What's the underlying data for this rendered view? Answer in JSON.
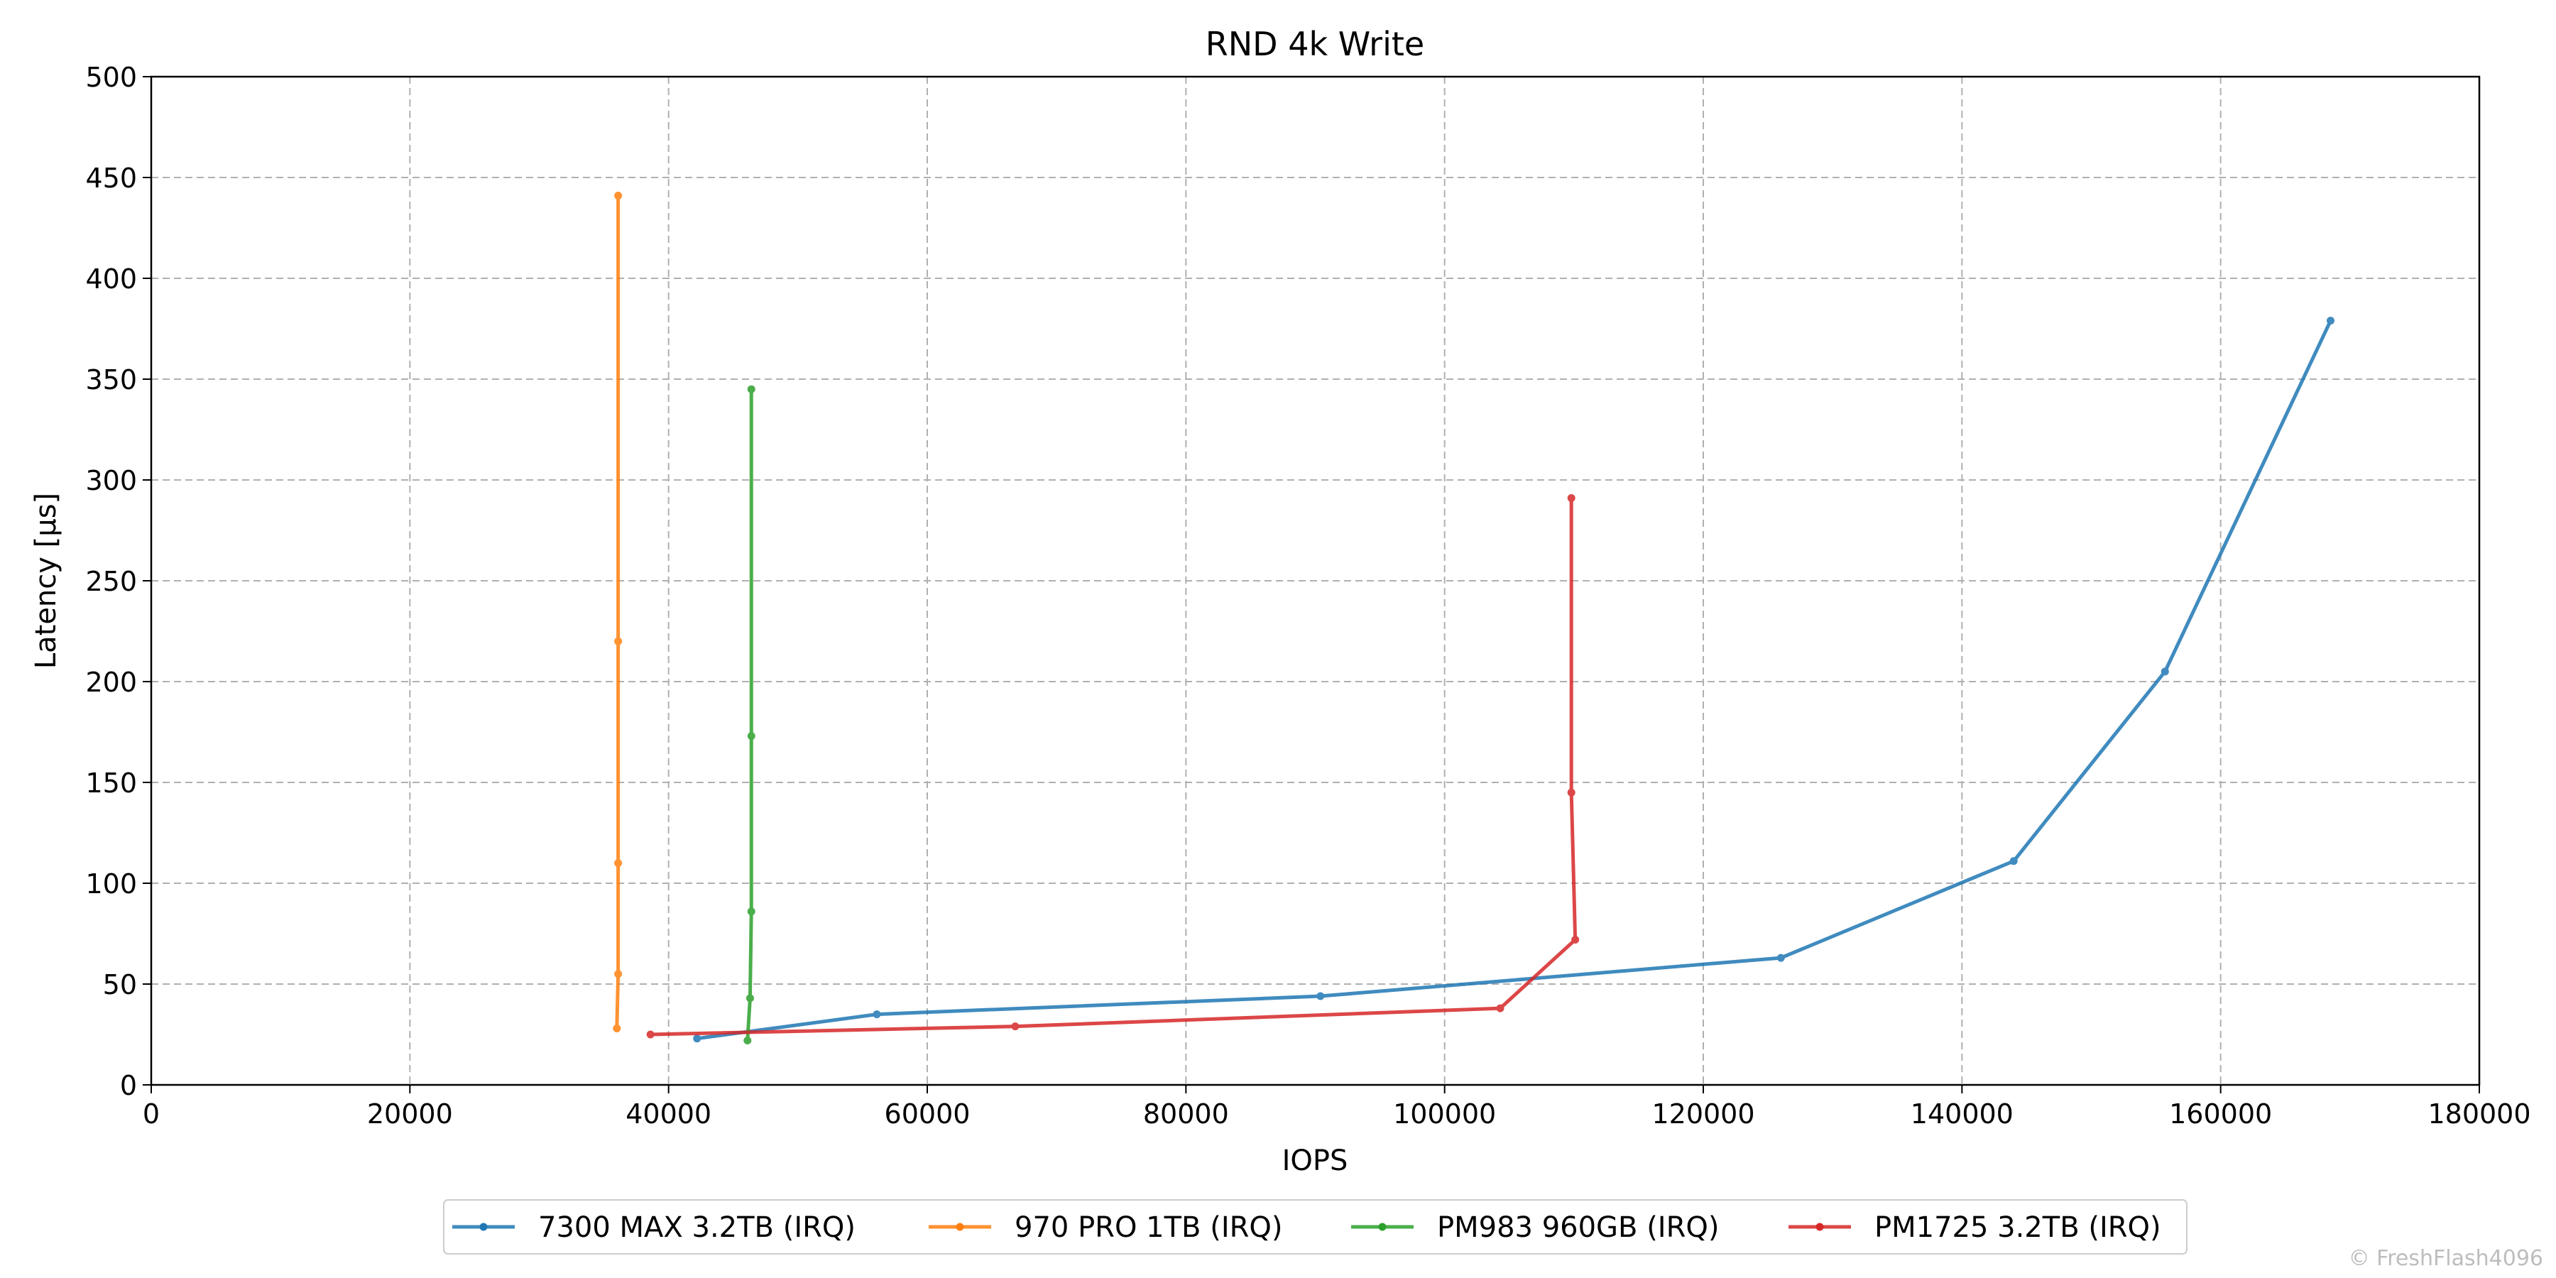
{
  "chart_data": {
    "type": "line",
    "title": "RND 4k Write",
    "xlabel": "IOPS",
    "ylabel": "Latency [µs]",
    "xlim": [
      0,
      180000
    ],
    "ylim": [
      0,
      500
    ],
    "xticks": [
      0,
      20000,
      40000,
      60000,
      80000,
      100000,
      120000,
      140000,
      160000,
      180000
    ],
    "yticks": [
      0,
      50,
      100,
      150,
      200,
      250,
      300,
      350,
      400,
      450,
      500
    ],
    "grid": true,
    "legend": "bottom-center",
    "series": [
      {
        "name": "7300 MAX 3.2TB (IRQ)",
        "color": "#1f77b4",
        "points": [
          [
            42200,
            23
          ],
          [
            56100,
            35
          ],
          [
            90400,
            44
          ],
          [
            126000,
            63
          ],
          [
            144000,
            111
          ],
          [
            155700,
            205
          ],
          [
            168500,
            379
          ]
        ]
      },
      {
        "name": "970 PRO 1TB (IRQ)",
        "color": "#ff7f0e",
        "points": [
          [
            36000,
            28
          ],
          [
            36100,
            55
          ],
          [
            36100,
            110
          ],
          [
            36100,
            220
          ],
          [
            36100,
            441
          ]
        ]
      },
      {
        "name": "PM983 960GB (IRQ)",
        "color": "#2ca02c",
        "points": [
          [
            46100,
            22
          ],
          [
            46300,
            43
          ],
          [
            46400,
            86
          ],
          [
            46400,
            173
          ],
          [
            46400,
            345
          ]
        ]
      },
      {
        "name": "PM1725 3.2TB (IRQ)",
        "color": "#d62728",
        "points": [
          [
            38600,
            25
          ],
          [
            66800,
            29
          ],
          [
            104300,
            38
          ],
          [
            110100,
            72
          ],
          [
            109800,
            145
          ],
          [
            109800,
            291
          ]
        ]
      }
    ]
  },
  "watermark": "© FreshFlash4096"
}
